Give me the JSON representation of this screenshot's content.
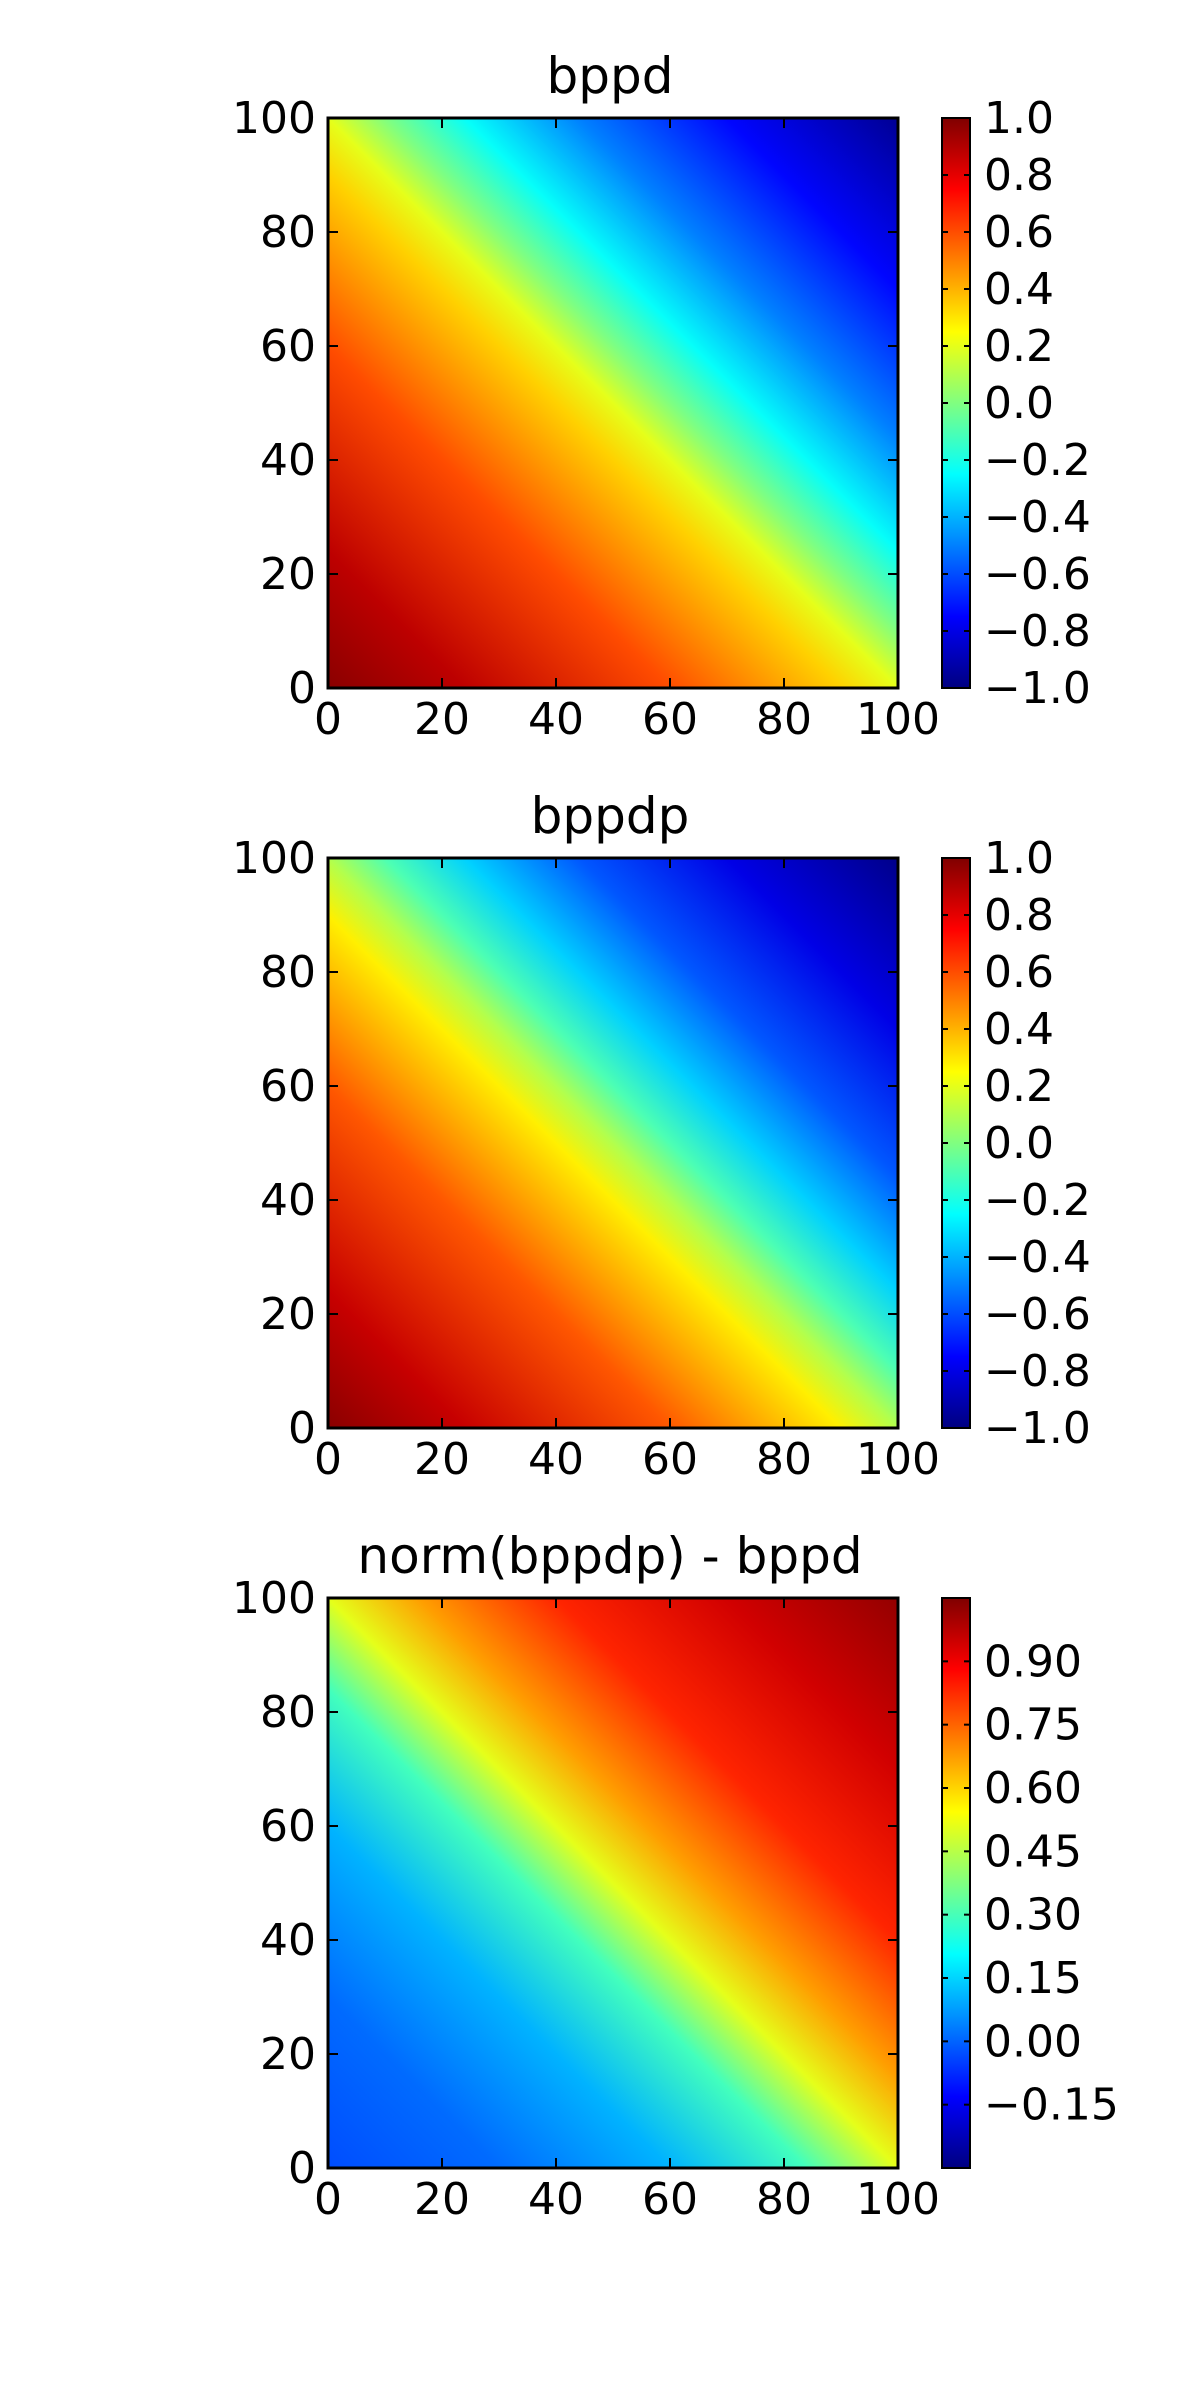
{
  "chart_data": [
    {
      "type": "heatmap",
      "title": "bppd",
      "x_range": [
        0,
        100
      ],
      "y_range": [
        0,
        100
      ],
      "x_ticks": [
        0,
        20,
        40,
        60,
        80,
        100
      ],
      "y_ticks": [
        0,
        20,
        40,
        60,
        80,
        100
      ],
      "x_tick_labels": [
        "0",
        "20",
        "40",
        "60",
        "80",
        "100"
      ],
      "y_tick_labels": [
        "0",
        "20",
        "40",
        "60",
        "80",
        "100"
      ],
      "colormap": "jet",
      "color_range": [
        -1.0,
        1.0
      ],
      "colorbar_ticks": [
        1.0,
        0.8,
        0.6,
        0.4,
        0.2,
        0.0,
        -0.2,
        -0.4,
        -0.6,
        -0.8,
        -1.0
      ],
      "colorbar_tick_labels": [
        "1.0",
        "0.8",
        "0.6",
        "0.4",
        "0.2",
        "0.0",
        "−0.2",
        "−0.4",
        "−0.6",
        "−0.8",
        "−1.0"
      ],
      "pattern": "value near 1.0 at the bottom-left corner, about 0.2 along the diagonal from (0,100) to (100,0), near -1.0 at the top-right corner"
    },
    {
      "type": "heatmap",
      "title": "bppdp",
      "x_range": [
        0,
        100
      ],
      "y_range": [
        0,
        100
      ],
      "x_ticks": [
        0,
        20,
        40,
        60,
        80,
        100
      ],
      "y_ticks": [
        0,
        20,
        40,
        60,
        80,
        100
      ],
      "x_tick_labels": [
        "0",
        "20",
        "40",
        "60",
        "80",
        "100"
      ],
      "y_tick_labels": [
        "0",
        "20",
        "40",
        "60",
        "80",
        "100"
      ],
      "colormap": "jet",
      "color_range": [
        -1.0,
        1.0
      ],
      "colorbar_ticks": [
        1.0,
        0.8,
        0.6,
        0.4,
        0.2,
        0.0,
        -0.2,
        -0.4,
        -0.6,
        -0.8,
        -1.0
      ],
      "colorbar_tick_labels": [
        "1.0",
        "0.8",
        "0.6",
        "0.4",
        "0.2",
        "0.0",
        "−0.2",
        "−0.4",
        "−0.6",
        "−0.8",
        "−1.0"
      ],
      "pattern": "value near 1.0 at the bottom-left corner, about 0.1 along the diagonal, near -1.0 at the top-right corner"
    },
    {
      "type": "heatmap",
      "title": "norm(bppdp) - bppd",
      "x_range": [
        0,
        100
      ],
      "y_range": [
        0,
        100
      ],
      "x_ticks": [
        0,
        20,
        40,
        60,
        80,
        100
      ],
      "y_ticks": [
        0,
        20,
        40,
        60,
        80,
        100
      ],
      "x_tick_labels": [
        "0",
        "20",
        "40",
        "60",
        "80",
        "100"
      ],
      "y_tick_labels": [
        "0",
        "20",
        "40",
        "60",
        "80",
        "100"
      ],
      "colormap": "jet",
      "color_range": [
        -0.3,
        1.05
      ],
      "colorbar_ticks": [
        0.9,
        0.75,
        0.6,
        0.45,
        0.3,
        0.15,
        0.0,
        -0.15
      ],
      "colorbar_tick_labels": [
        "0.90",
        "0.75",
        "0.60",
        "0.45",
        "0.30",
        "0.15",
        "0.00",
        "−0.15"
      ],
      "pattern": "value about 0.0 at the bottom-left corner, about 0.55 along the diagonal, near 1.0 at the top-right corner"
    }
  ]
}
